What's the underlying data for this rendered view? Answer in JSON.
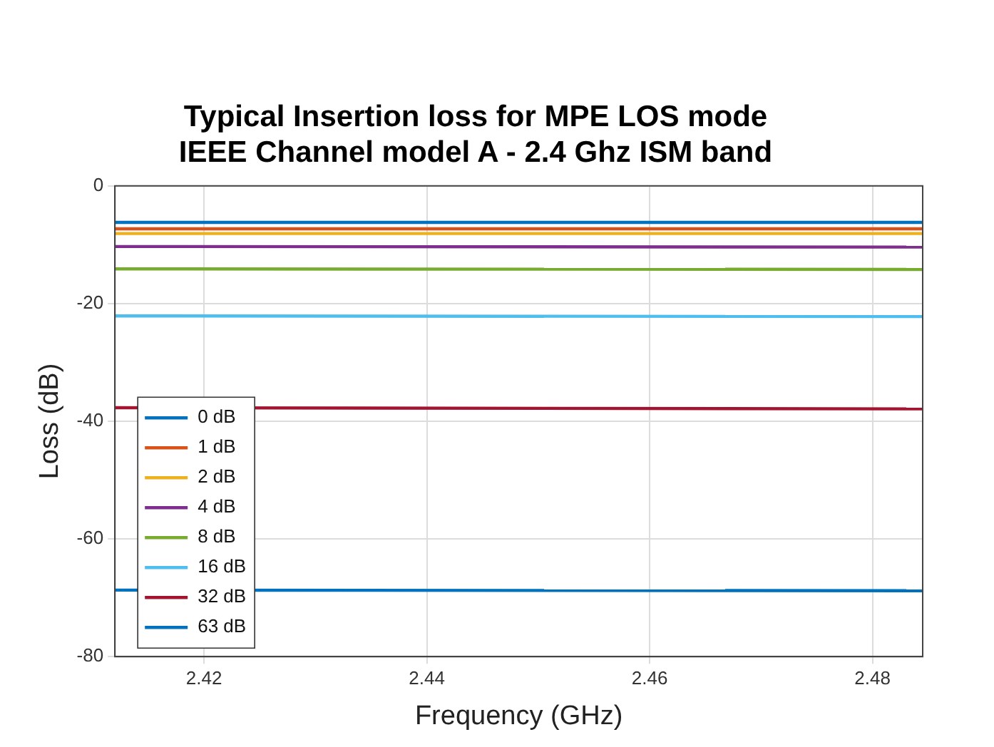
{
  "chart_data": {
    "type": "line",
    "title": [
      "Typical Insertion loss for MPE LOS mode",
      "IEEE Channel model A - 2.4 Ghz ISM band"
    ],
    "xlabel": "Frequency (GHz)",
    "ylabel": "Loss (dB)",
    "x": [
      2.412,
      2.4845
    ],
    "xlim": [
      2.412,
      2.4845
    ],
    "xticks": [
      2.42,
      2.44,
      2.46,
      2.48
    ],
    "ylim": [
      -80,
      0
    ],
    "yticks": [
      -80,
      -60,
      -40,
      -20,
      0
    ],
    "grid": true,
    "legend": "bottom left",
    "marker": "none",
    "line_style": "solid",
    "series": [
      {
        "name": "0 dB",
        "color": "#0072bd",
        "values": [
          -6.2,
          -6.2
        ]
      },
      {
        "name": "1 dB",
        "color": "#d95319",
        "values": [
          -7.3,
          -7.3
        ]
      },
      {
        "name": "2 dB",
        "color": "#edb120",
        "values": [
          -8.1,
          -8.1
        ]
      },
      {
        "name": "4 dB",
        "color": "#7e2f8e",
        "values": [
          -10.3,
          -10.4
        ]
      },
      {
        "name": "8 dB",
        "color": "#77ac30",
        "values": [
          -14.1,
          -14.2
        ]
      },
      {
        "name": "16 dB",
        "color": "#4dbeee",
        "values": [
          -22.1,
          -22.2
        ]
      },
      {
        "name": "32 dB",
        "color": "#a2142f",
        "values": [
          -37.7,
          -37.9
        ]
      },
      {
        "name": "63 dB",
        "color": "#0072bd",
        "values": [
          -68.7,
          -68.8
        ]
      }
    ]
  }
}
